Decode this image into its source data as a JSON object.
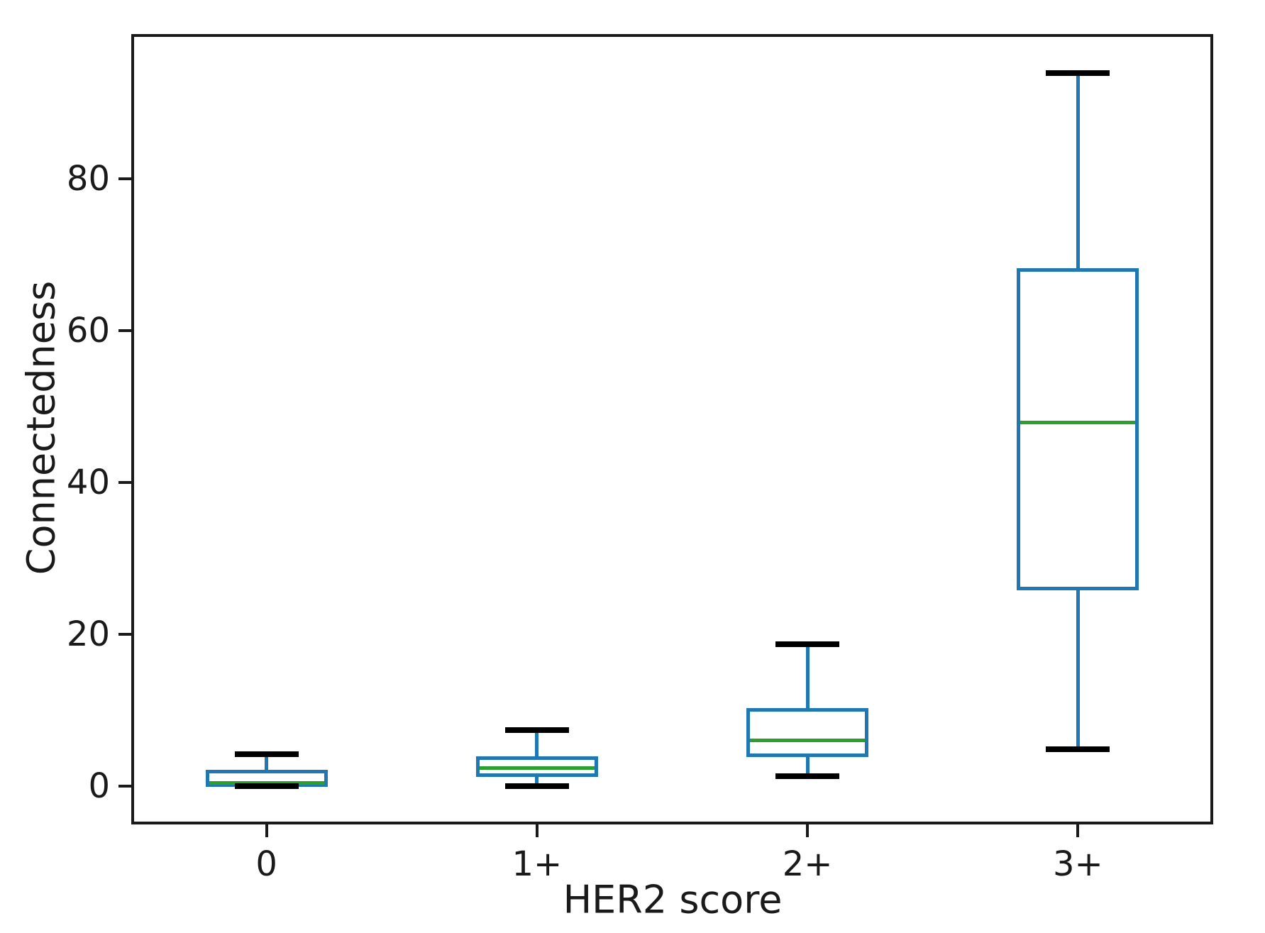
{
  "chart_data": {
    "type": "boxplot",
    "title": "",
    "xlabel": "HER2 score",
    "ylabel": "Connectedness",
    "categories": [
      "0",
      "1+",
      "2+",
      "3+"
    ],
    "y_ticks": [
      0,
      20,
      40,
      60,
      80
    ],
    "ylim": [
      -4.7,
      99.1
    ],
    "grid": false,
    "legend": false,
    "series": [
      {
        "category": "0",
        "whisker_low": 0.0,
        "q1": 0.1,
        "median": 0.4,
        "q3": 1.9,
        "whisker_high": 4.2
      },
      {
        "category": "1+",
        "whisker_low": 0.0,
        "q1": 1.4,
        "median": 2.4,
        "q3": 3.7,
        "whisker_high": 7.4
      },
      {
        "category": "2+",
        "whisker_low": 1.3,
        "q1": 4.0,
        "median": 6.0,
        "q3": 10.0,
        "whisker_high": 18.7
      },
      {
        "category": "3+",
        "whisker_low": 4.8,
        "q1": 26.0,
        "median": 47.9,
        "q3": 68.0,
        "whisker_high": 94.0
      }
    ],
    "colors": {
      "box": "#1f77b4",
      "whisker": "#1f77b4",
      "cap": "#000000",
      "median": "#2ca02c",
      "axis": "#1a1a1a",
      "background": "#ffffff"
    }
  }
}
